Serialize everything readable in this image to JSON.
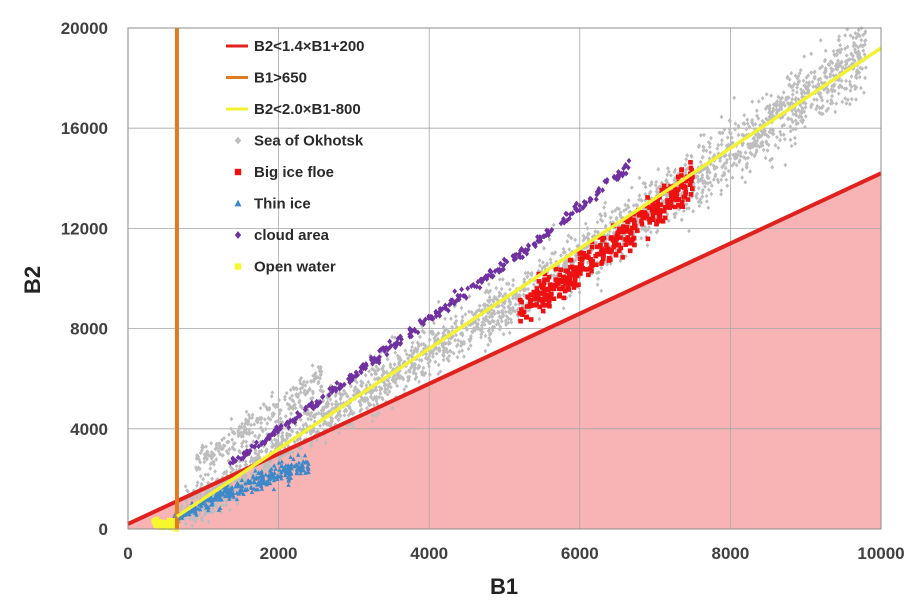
{
  "chart_data": {
    "type": "scatter",
    "xlabel": "B1",
    "ylabel": "B2",
    "xlim": [
      0,
      10000
    ],
    "ylim": [
      0,
      20000
    ],
    "x_ticks": [
      0,
      2000,
      4000,
      6000,
      8000,
      10000
    ],
    "y_ticks": [
      0,
      4000,
      8000,
      12000,
      16000,
      20000
    ],
    "x_tick_labels": [
      "0",
      "2000",
      "4000",
      "6000",
      "8000",
      "10000"
    ],
    "y_tick_labels": [
      "0",
      "4000",
      "8000",
      "12000",
      "16000",
      "20000"
    ],
    "grid": true,
    "legend_position": "top-left",
    "shaded_region": {
      "description_label": "B2<1.4×B1+200",
      "color": "#f8b4b4",
      "polygon": [
        [
          0,
          200
        ],
        [
          10000,
          14200
        ],
        [
          10000,
          0
        ],
        [
          0,
          0
        ]
      ]
    },
    "lines": [
      {
        "name": "B2<1.4×B1+200",
        "color": "#e0211d",
        "kind": "line",
        "slope": 1.4,
        "intercept": 200,
        "x_range": [
          0,
          10000
        ]
      },
      {
        "name": "B1>650",
        "color": "#e07b20",
        "kind": "vline",
        "x": 650,
        "y_range": [
          0,
          20000
        ]
      },
      {
        "name": "B2<2.0×B1-800",
        "color": "#f2f230",
        "kind": "line",
        "slope": 2.0,
        "intercept": -800,
        "x_range": [
          650,
          10000
        ]
      }
    ],
    "scatter_series": [
      {
        "name": "Sea of Okhotsk",
        "color": "#bdbdbd",
        "marker": "diamond",
        "clusters": [
          {
            "x_range": [
              700,
              9800
            ],
            "trend": [
              [
                700,
                400
              ],
              [
                2000,
                3300
              ],
              [
                4000,
                7000
              ],
              [
                6000,
                10800
              ],
              [
                8000,
                15000
              ],
              [
                9800,
                19000
              ]
            ],
            "spread": 700,
            "count": 2600
          },
          {
            "x_range": [
              900,
              2600
            ],
            "trend": [
              [
                900,
                2600
              ],
              [
                1500,
                3800
              ],
              [
                2200,
                5200
              ],
              [
                2600,
                6200
              ]
            ],
            "spread": 450,
            "count": 260
          }
        ]
      },
      {
        "name": "Big ice floe",
        "color": "#ee1111",
        "marker": "square",
        "clusters": [
          {
            "x_range": [
              5200,
              7500
            ],
            "trend": [
              [
                5200,
                8800
              ],
              [
                5800,
                9900
              ],
              [
                6400,
                11300
              ],
              [
                7000,
                12700
              ],
              [
                7500,
                13900
              ]
            ],
            "spread": 420,
            "count": 380
          }
        ]
      },
      {
        "name": "Thin ice",
        "color": "#3d88c8",
        "marker": "triangle",
        "clusters": [
          {
            "x_range": [
              600,
              2400
            ],
            "trend": [
              [
                600,
                400
              ],
              [
                1200,
                1300
              ],
              [
                1800,
                2000
              ],
              [
                2400,
                2600
              ]
            ],
            "spread": 220,
            "count": 320
          }
        ]
      },
      {
        "name": "cloud area",
        "color": "#7030a0",
        "marker": "diamond",
        "clusters": [
          {
            "x_range": [
              1350,
              6700
            ],
            "trend": [
              [
                1350,
                2600
              ],
              [
                2500,
                5000
              ],
              [
                3500,
                7300
              ],
              [
                4500,
                9500
              ],
              [
                5500,
                11600
              ],
              [
                6700,
                14600
              ]
            ],
            "spread": 130,
            "count": 330
          }
        ]
      },
      {
        "name": "Open water",
        "color": "#f7f72e",
        "marker": "square",
        "clusters": [
          {
            "x_range": [
              330,
              650
            ],
            "trend": [
              [
                330,
                300
              ],
              [
                500,
                150
              ],
              [
                650,
                80
              ]
            ],
            "spread": 130,
            "count": 60
          }
        ]
      }
    ],
    "legend_entries": [
      {
        "label": "B2<1.4×B1+200",
        "kind": "line",
        "color": "#e0211d"
      },
      {
        "label": "B1>650",
        "kind": "line",
        "color": "#e07b20"
      },
      {
        "label": "B2<2.0×B1-800",
        "kind": "line",
        "color": "#f2f230"
      },
      {
        "label": "Sea of Okhotsk",
        "kind": "diamond",
        "color": "#bdbdbd"
      },
      {
        "label": "Big ice floe",
        "kind": "square",
        "color": "#ee1111"
      },
      {
        "label": "Thin ice",
        "kind": "triangle",
        "color": "#3d88c8"
      },
      {
        "label": "cloud area",
        "kind": "diamond",
        "color": "#7030a0"
      },
      {
        "label": "Open water",
        "kind": "square",
        "color": "#f7f72e"
      }
    ]
  }
}
